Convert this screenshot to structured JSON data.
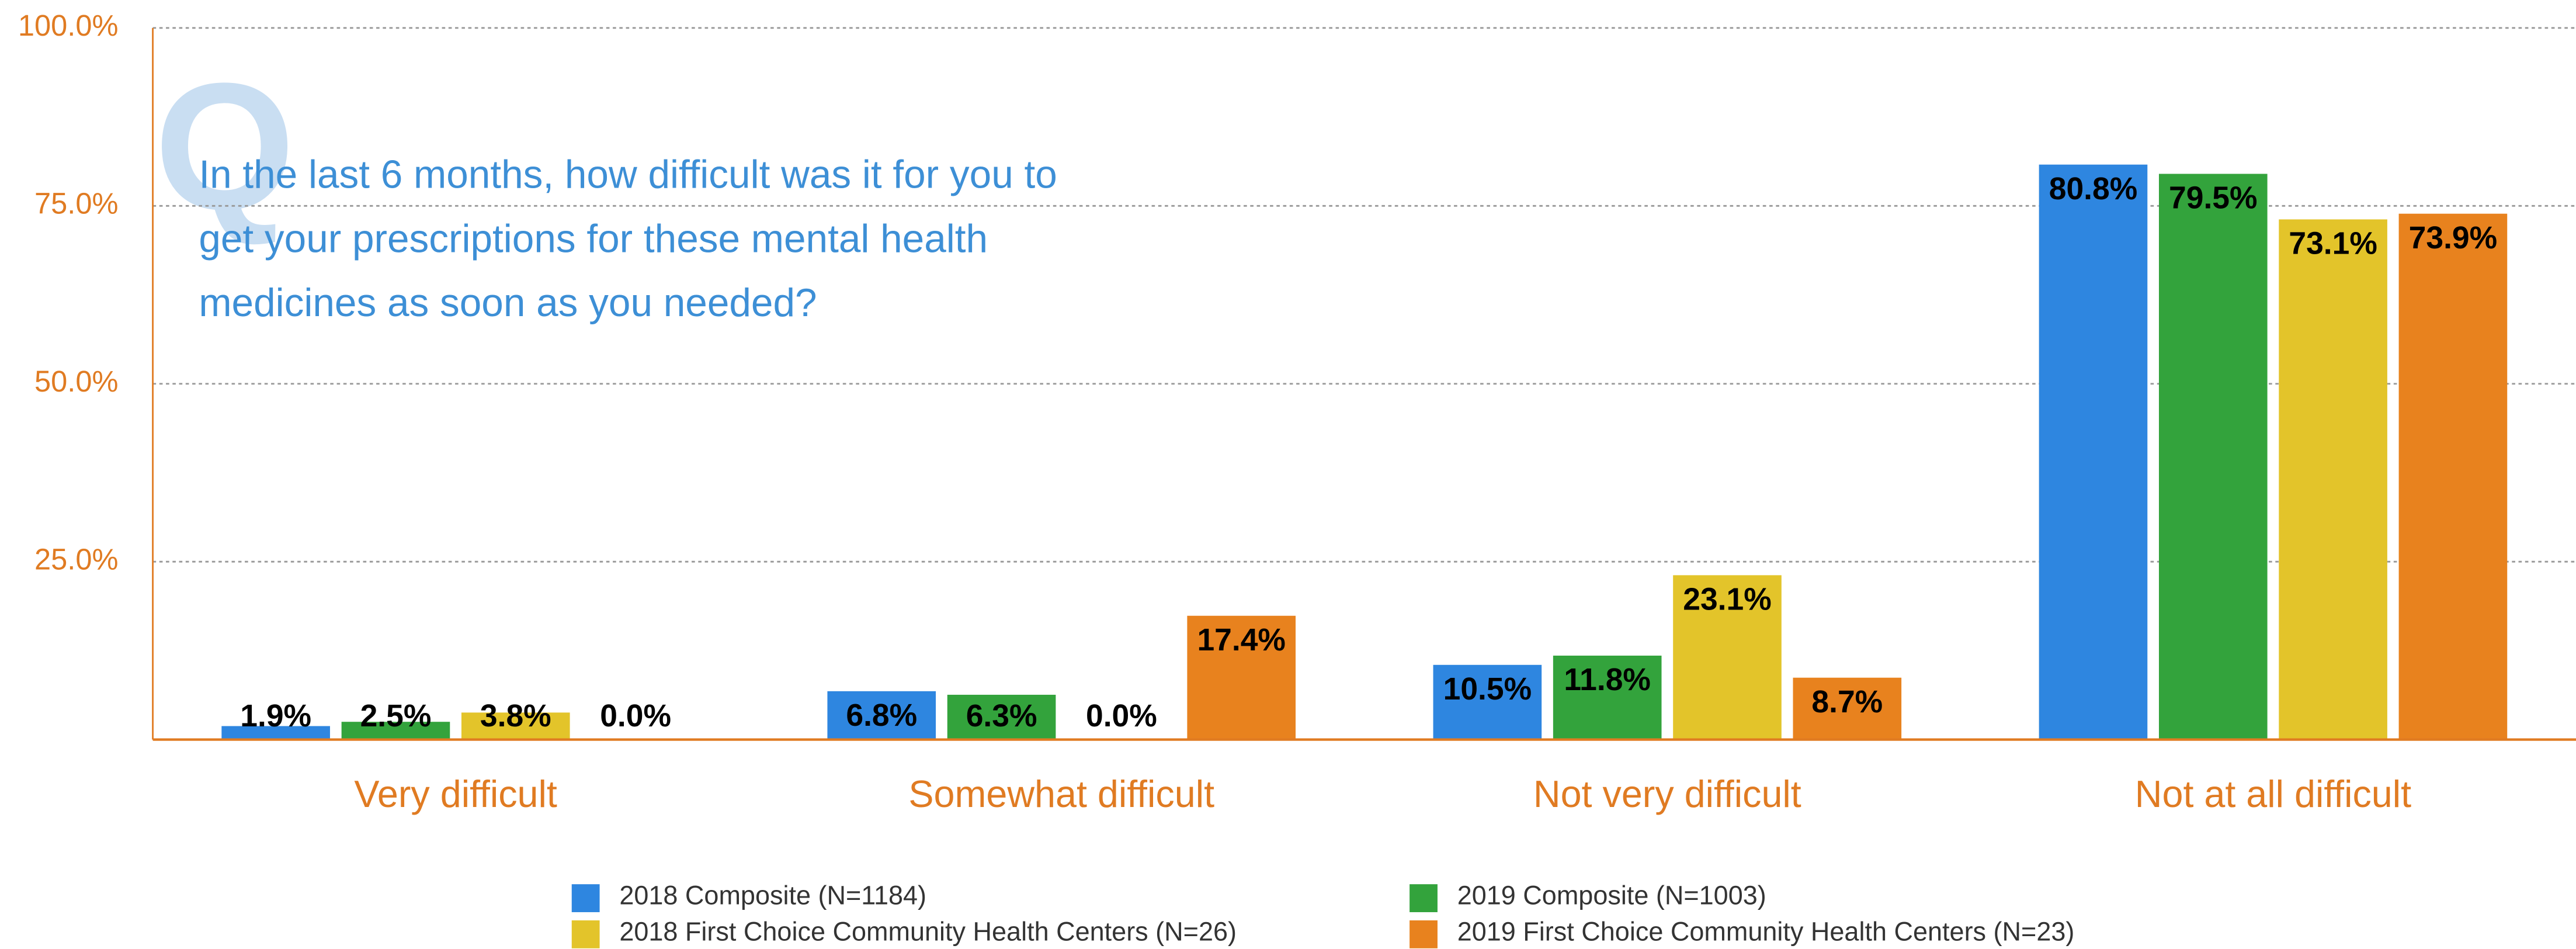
{
  "chart_data": {
    "type": "bar",
    "annotation_letter": "Q",
    "question_lines": [
      "In the last 6 months, how difficult was it for you to",
      "get your prescriptions for these mental health",
      "medicines as soon as you needed?"
    ],
    "categories": [
      "Very difficult",
      "Somewhat difficult",
      "Not very difficult",
      "Not at all difficult"
    ],
    "series": [
      {
        "name": "2018 Composite (N=1184)",
        "color": "#2e86e0",
        "values": [
          1.9,
          6.8,
          10.5,
          80.8
        ],
        "value_labels": [
          "1.9%",
          "6.8%",
          "10.5%",
          "80.8%"
        ]
      },
      {
        "name": "2019 Composite (N=1003)",
        "color": "#33a33c",
        "values": [
          2.5,
          6.3,
          11.8,
          79.5
        ],
        "value_labels": [
          "2.5%",
          "6.3%",
          "11.8%",
          "79.5%"
        ]
      },
      {
        "name": "2018 First Choice Community Health Centers (N=26)",
        "color": "#e3c42a",
        "values": [
          3.8,
          0.0,
          23.1,
          73.1
        ],
        "value_labels": [
          "3.8%",
          "0.0%",
          "23.1%",
          "73.1%"
        ]
      },
      {
        "name": "2019 First Choice Community Health Centers (N=23)",
        "color": "#e8821e",
        "values": [
          0.0,
          17.4,
          8.7,
          73.9
        ],
        "value_labels": [
          "0.0%",
          "17.4%",
          "8.7%",
          "73.9%"
        ]
      }
    ],
    "ylim": [
      0,
      100
    ],
    "yticks": [
      {
        "value": 25,
        "label": "25.0%"
      },
      {
        "value": 50,
        "label": "50.0%"
      },
      {
        "value": 75,
        "label": "75.0%"
      },
      {
        "value": 100,
        "label": "100.0%"
      }
    ],
    "grid": true
  }
}
